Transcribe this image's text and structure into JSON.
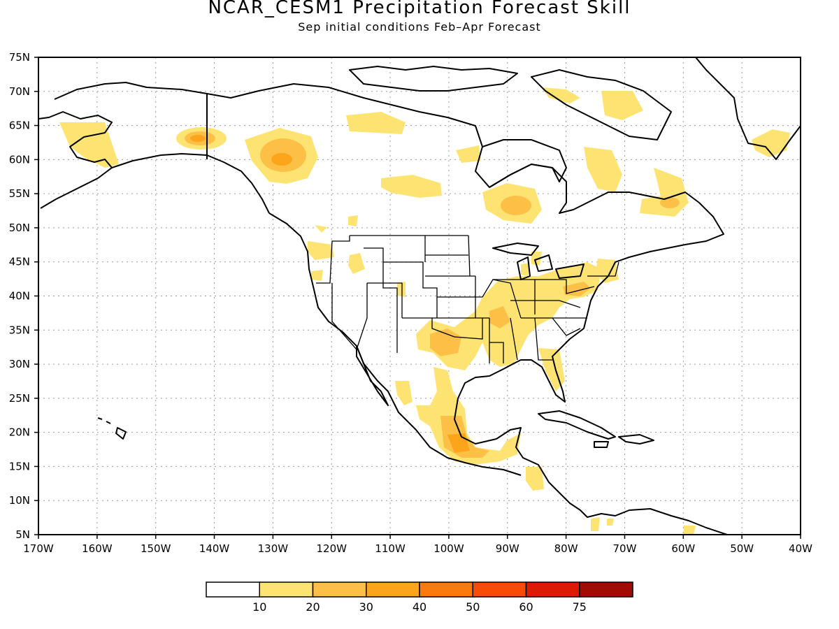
{
  "title": "NCAR_CESM1 Precipitation Forecast Skill",
  "subtitle": "Sep initial conditions  Feb–Apr Forecast",
  "map": {
    "lon_range": [
      -170,
      -40
    ],
    "lat_range": [
      5,
      75
    ],
    "lat_ticks": [
      "5N",
      "10N",
      "15N",
      "20N",
      "25N",
      "30N",
      "35N",
      "40N",
      "45N",
      "50N",
      "55N",
      "60N",
      "65N",
      "70N",
      "75N"
    ],
    "lon_ticks": [
      "170W",
      "160W",
      "150W",
      "140W",
      "130W",
      "120W",
      "110W",
      "100W",
      "90W",
      "80W",
      "70W",
      "60W",
      "50W",
      "40W"
    ],
    "gridlines": true
  },
  "colorbar": {
    "labels": [
      "10",
      "20",
      "30",
      "40",
      "50",
      "60",
      "75"
    ],
    "colors": [
      "#ffffff",
      "#fde472",
      "#fcc046",
      "#fca41a",
      "#fa7b0c",
      "#f84c06",
      "#dd1a06",
      "#a40a04"
    ]
  }
}
